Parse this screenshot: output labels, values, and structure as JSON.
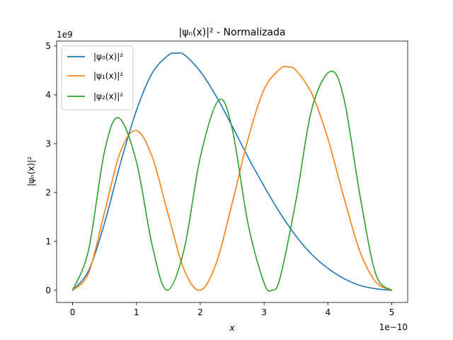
{
  "chart_data": {
    "type": "line",
    "title": "|ψₙ(x)|² - Normalizada",
    "xlabel": "x",
    "ylabel": "|ψₙ(x)|²",
    "x_offset_label": "1e−10",
    "y_offset_label": "1e9",
    "x_unit_scale": 1e-10,
    "y_unit_scale": 1000000000.0,
    "xlim": [
      -0.25,
      5.25
    ],
    "ylim": [
      -0.25,
      5.1
    ],
    "x_ticks": [
      0,
      1,
      2,
      3,
      4,
      5
    ],
    "x_tick_labels": [
      "0",
      "1",
      "2",
      "3",
      "4",
      "5"
    ],
    "y_ticks": [
      0,
      1,
      2,
      3,
      4,
      5
    ],
    "y_tick_labels": [
      "0",
      "1",
      "2",
      "3",
      "4",
      "5"
    ],
    "grid": false,
    "legend_position": "upper-left",
    "series": [
      {
        "name": "|ψ₀(x)|²",
        "color": "#1f77b4",
        "x": [
          0,
          0.25,
          0.5,
          0.75,
          1.0,
          1.25,
          1.5,
          1.62,
          1.75,
          2.0,
          2.25,
          2.5,
          2.75,
          3.0,
          3.25,
          3.5,
          3.75,
          4.0,
          4.25,
          4.5,
          4.75,
          5.0
        ],
        "y": [
          0,
          0.4,
          1.37,
          2.6,
          3.68,
          4.45,
          4.81,
          4.85,
          4.82,
          4.48,
          3.97,
          3.36,
          2.72,
          2.13,
          1.58,
          1.11,
          0.73,
          0.45,
          0.24,
          0.1,
          0.03,
          0
        ]
      },
      {
        "name": "|ψ₁(x)|²",
        "color": "#ff7f0e",
        "x": [
          0,
          0.25,
          0.5,
          0.75,
          1.0,
          1.25,
          1.5,
          1.75,
          2.0,
          2.25,
          2.5,
          2.75,
          3.0,
          3.25,
          3.375,
          3.5,
          3.75,
          4.0,
          4.25,
          4.5,
          4.75,
          5.0
        ],
        "y": [
          0,
          0.35,
          1.59,
          2.84,
          3.27,
          2.72,
          1.54,
          0.41,
          0,
          0.55,
          1.78,
          3.1,
          4.11,
          4.53,
          4.57,
          4.5,
          4.02,
          3.1,
          1.9,
          0.8,
          0.17,
          0
        ]
      },
      {
        "name": "|ψ₂(x)|²",
        "color": "#2ca02c",
        "x": [
          0,
          0.25,
          0.5,
          0.72,
          1.0,
          1.25,
          1.48,
          1.75,
          2.0,
          2.29,
          2.5,
          2.75,
          3.0,
          3.12,
          3.25,
          3.5,
          3.75,
          4.04,
          4.25,
          4.5,
          4.75,
          5.0
        ],
        "y": [
          0,
          0.82,
          2.84,
          3.53,
          2.63,
          0.9,
          0,
          0.85,
          2.72,
          3.89,
          3.31,
          1.35,
          0.15,
          0,
          0.25,
          1.84,
          3.72,
          4.48,
          3.93,
          1.96,
          0.33,
          0
        ]
      }
    ]
  }
}
